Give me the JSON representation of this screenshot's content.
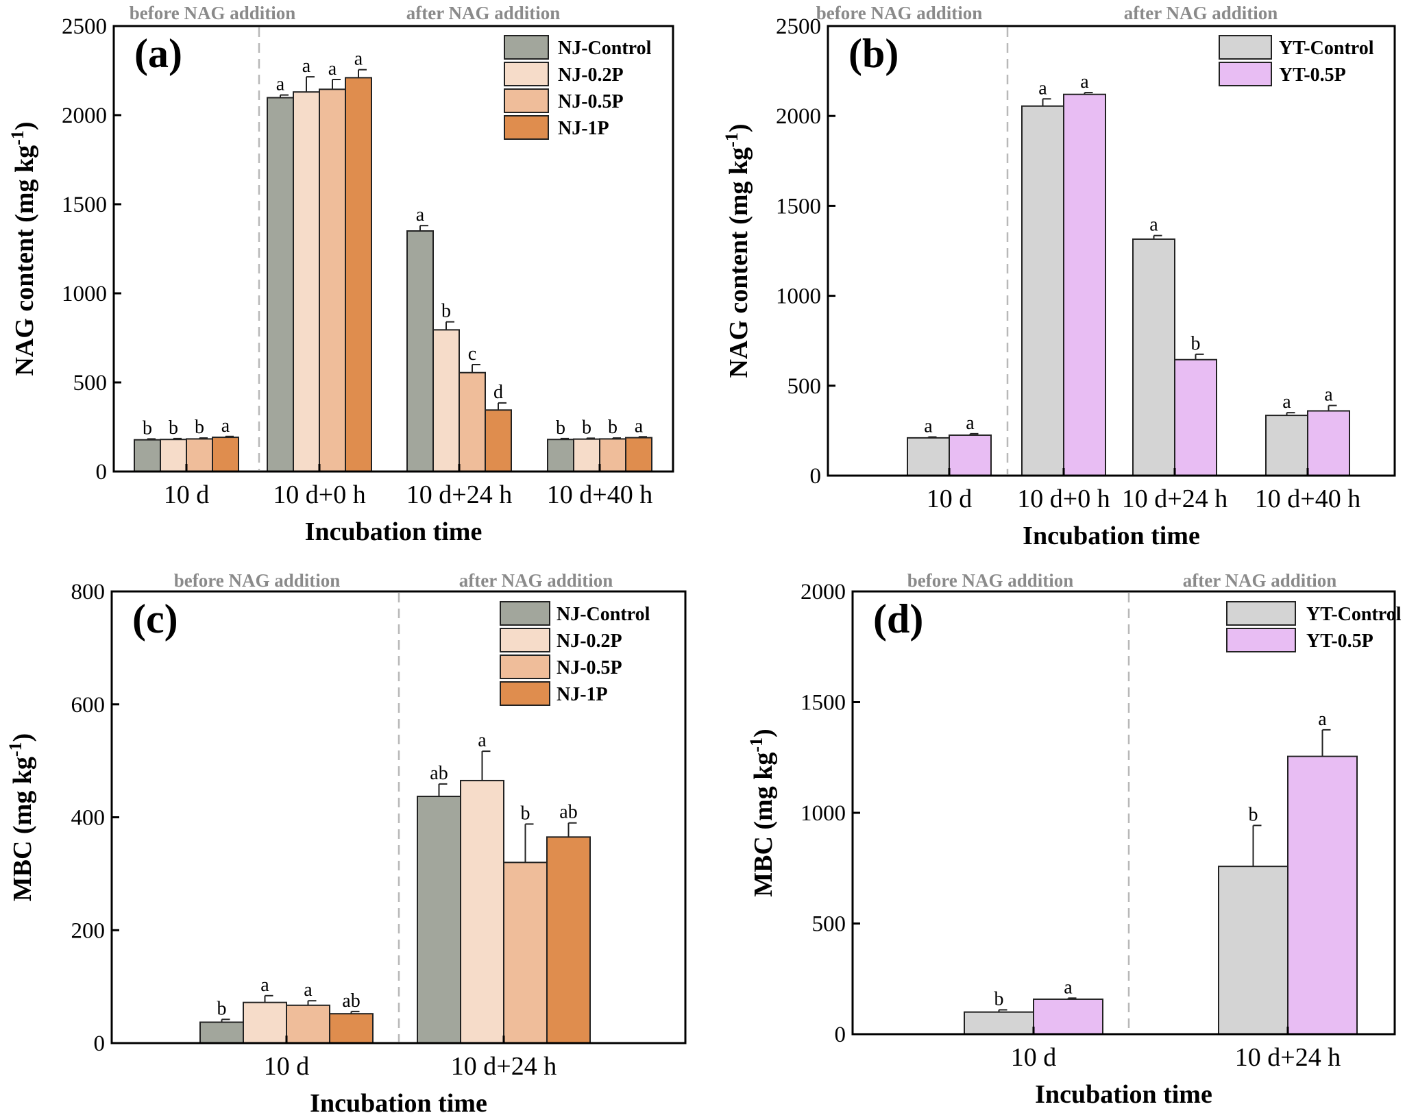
{
  "colors": {
    "NJ-Control": "#a2a69c",
    "NJ-0.2P": "#f6dcc9",
    "NJ-0.5P": "#efbd9a",
    "NJ-1P": "#df8d4e",
    "YT-Control": "#d4d4d4",
    "YT-0.5P": "#e8bdf3"
  },
  "chart_data": [
    {
      "id": "a",
      "type": "bar",
      "panel_label": "(a)",
      "xlabel": "Incubation time",
      "ylabel": "NAG content (mg kg",
      "ylabel_sup": "-1",
      "ylabel_close": ")",
      "ylim": [
        0,
        2500
      ],
      "yticks": [
        0,
        500,
        1000,
        1500,
        2000,
        2500
      ],
      "categories": [
        "10 d",
        "10 d+0 h",
        "10 d+24 h",
        "10 d+40 h"
      ],
      "legend_position": "top-right",
      "region_labels": [
        "before NAG addition",
        "after NAG addition"
      ],
      "series": [
        {
          "name": "NJ-Control",
          "values": [
            178,
            2098,
            1350,
            180
          ],
          "errors": [
            5,
            15,
            30,
            5
          ],
          "sig": [
            "b",
            "a",
            "a",
            "b"
          ]
        },
        {
          "name": "NJ-0.2P",
          "values": [
            180,
            2130,
            795,
            182
          ],
          "errors": [
            5,
            85,
            45,
            5
          ],
          "sig": [
            "b",
            "a",
            "b",
            "b"
          ]
        },
        {
          "name": "NJ-0.5P",
          "values": [
            183,
            2145,
            555,
            183
          ],
          "errors": [
            5,
            55,
            45,
            5
          ],
          "sig": [
            "b",
            "a",
            "c",
            "b"
          ]
        },
        {
          "name": "NJ-1P",
          "values": [
            192,
            2210,
            345,
            190
          ],
          "errors": [
            5,
            45,
            40,
            5
          ],
          "sig": [
            "a",
            "a",
            "d",
            "a"
          ]
        }
      ]
    },
    {
      "id": "b",
      "type": "bar",
      "panel_label": "(b)",
      "xlabel": "Incubation time",
      "ylabel": "NAG content (mg kg",
      "ylabel_sup": "-1",
      "ylabel_close": ")",
      "ylim": [
        0,
        2500
      ],
      "yticks": [
        0,
        500,
        1000,
        1500,
        2000,
        2500
      ],
      "categories": [
        "10 d",
        "10 d+0 h",
        "10 d+24 h",
        "10 d+40 h"
      ],
      "legend_position": "top-right",
      "region_labels": [
        "before NAG addition",
        "after NAG addition"
      ],
      "series": [
        {
          "name": "YT-Control",
          "values": [
            210,
            2055,
            1315,
            335
          ],
          "errors": [
            5,
            40,
            20,
            15
          ],
          "sig": [
            "a",
            "a",
            "a",
            "a"
          ]
        },
        {
          "name": "YT-0.5P",
          "values": [
            225,
            2120,
            645,
            360
          ],
          "errors": [
            8,
            10,
            30,
            30
          ],
          "sig": [
            "a",
            "a",
            "b",
            "a"
          ]
        }
      ]
    },
    {
      "id": "c",
      "type": "bar",
      "panel_label": "(c)",
      "xlabel": "Incubation time",
      "ylabel": "MBC (mg kg",
      "ylabel_sup": "-1",
      "ylabel_close": ")",
      "ylim": [
        0,
        800
      ],
      "yticks": [
        0,
        200,
        400,
        600,
        800
      ],
      "categories": [
        "10 d",
        "10 d+24 h"
      ],
      "legend_position": "top-right",
      "region_labels": [
        "before NAG addition",
        "after NAG addition"
      ],
      "series": [
        {
          "name": "NJ-Control",
          "values": [
            37,
            437
          ],
          "errors": [
            5,
            22
          ],
          "sig": [
            "b",
            "ab"
          ]
        },
        {
          "name": "NJ-0.2P",
          "values": [
            72,
            465
          ],
          "errors": [
            12,
            52
          ],
          "sig": [
            "a",
            "a"
          ]
        },
        {
          "name": "NJ-0.5P",
          "values": [
            67,
            320
          ],
          "errors": [
            8,
            68
          ],
          "sig": [
            "a",
            "b"
          ]
        },
        {
          "name": "NJ-1P",
          "values": [
            52,
            365
          ],
          "errors": [
            4,
            25
          ],
          "sig": [
            "ab",
            "ab"
          ]
        }
      ]
    },
    {
      "id": "d",
      "type": "bar",
      "panel_label": "(d)",
      "xlabel": "Incubation time",
      "ylabel": "MBC (mg kg",
      "ylabel_sup": "-1",
      "ylabel_close": ")",
      "ylim": [
        0,
        2000
      ],
      "yticks": [
        0,
        500,
        1000,
        1500,
        2000
      ],
      "categories": [
        "10 d",
        "10 d+24 h"
      ],
      "legend_position": "top-right",
      "region_labels": [
        "before NAG addition",
        "after NAG addition"
      ],
      "series": [
        {
          "name": "YT-Control",
          "values": [
            100,
            758
          ],
          "errors": [
            10,
            185
          ],
          "sig": [
            "b",
            "b"
          ]
        },
        {
          "name": "YT-0.5P",
          "values": [
            158,
            1255
          ],
          "errors": [
            5,
            120
          ],
          "sig": [
            "a",
            "a"
          ]
        }
      ]
    }
  ]
}
